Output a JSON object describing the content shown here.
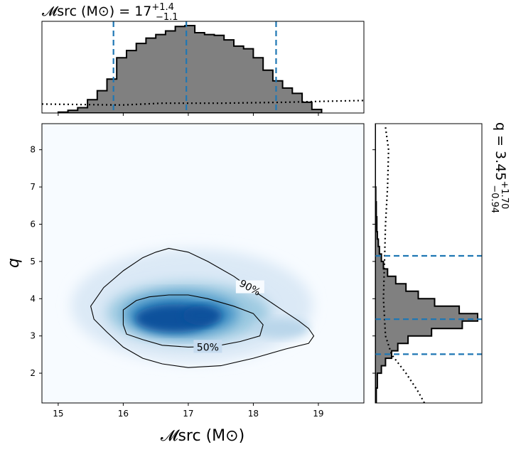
{
  "chart_data": [
    {
      "panel": "main",
      "type": "heatmap",
      "description_type": "2d-posterior-density-with-credible-contours",
      "xlabel": "𝓜src (M⊙)",
      "ylabel": "q",
      "xlim": [
        14.75,
        19.7
      ],
      "ylim": [
        1.2,
        8.7
      ],
      "x_ticks": [
        15,
        16,
        17,
        18,
        19
      ],
      "y_ticks": [
        2,
        3,
        4,
        5,
        6,
        7,
        8
      ],
      "colormap": "Blues",
      "density_peak": {
        "x": 16.9,
        "y": 3.4
      },
      "contours": [
        {
          "label": "90%",
          "label_position": {
            "x": 17.95,
            "y": 4.3
          },
          "points": [
            [
              15.5,
              3.8
            ],
            [
              15.7,
              4.3
            ],
            [
              16.0,
              4.75
            ],
            [
              16.3,
              5.1
            ],
            [
              16.5,
              5.25
            ],
            [
              16.7,
              5.35
            ],
            [
              17.0,
              5.25
            ],
            [
              17.3,
              5.0
            ],
            [
              17.7,
              4.6
            ],
            [
              18.1,
              4.1
            ],
            [
              18.4,
              3.75
            ],
            [
              18.7,
              3.4
            ],
            [
              18.85,
              3.2
            ],
            [
              18.93,
              3.0
            ],
            [
              18.85,
              2.8
            ],
            [
              18.5,
              2.65
            ],
            [
              18.0,
              2.4
            ],
            [
              17.5,
              2.2
            ],
            [
              17.0,
              2.15
            ],
            [
              16.6,
              2.25
            ],
            [
              16.3,
              2.4
            ],
            [
              16.0,
              2.7
            ],
            [
              15.75,
              3.1
            ],
            [
              15.55,
              3.45
            ]
          ]
        },
        {
          "label": "50%",
          "label_position": {
            "x": 17.3,
            "y": 2.7
          },
          "points": [
            [
              16.0,
              3.3
            ],
            [
              16.0,
              3.7
            ],
            [
              16.2,
              3.95
            ],
            [
              16.4,
              4.05
            ],
            [
              16.7,
              4.1
            ],
            [
              17.0,
              4.1
            ],
            [
              17.3,
              4.0
            ],
            [
              17.7,
              3.8
            ],
            [
              18.0,
              3.6
            ],
            [
              18.15,
              3.3
            ],
            [
              18.1,
              3.0
            ],
            [
              17.8,
              2.85
            ],
            [
              17.4,
              2.72
            ],
            [
              17.0,
              2.7
            ],
            [
              16.6,
              2.75
            ],
            [
              16.3,
              2.9
            ],
            [
              16.05,
              3.05
            ]
          ]
        }
      ]
    },
    {
      "panel": "top-marginal",
      "type": "histogram",
      "title": "𝓜src (M⊙) = 17",
      "title_sup": "+1.4",
      "title_sub": "−1.1",
      "xlim": [
        14.75,
        19.7
      ],
      "bin_edges": [
        15.0,
        15.15,
        15.3,
        15.45,
        15.6,
        15.75,
        15.9,
        16.05,
        16.2,
        16.35,
        16.5,
        16.65,
        16.8,
        16.95,
        17.1,
        17.25,
        17.4,
        17.55,
        17.7,
        17.85,
        18.0,
        18.15,
        18.3,
        18.45,
        18.6,
        18.75,
        18.9,
        19.05
      ],
      "counts": [
        0.01,
        0.03,
        0.06,
        0.15,
        0.25,
        0.38,
        0.62,
        0.7,
        0.78,
        0.84,
        0.88,
        0.92,
        0.97,
        0.98,
        0.9,
        0.88,
        0.87,
        0.82,
        0.75,
        0.72,
        0.62,
        0.48,
        0.36,
        0.28,
        0.22,
        0.12,
        0.04
      ],
      "credible_lines": [
        15.85,
        16.97,
        18.35
      ],
      "prior_dotted": {
        "x": [
          14.75,
          15.9,
          16.0,
          16.6,
          17.5,
          18.5,
          19.0,
          19.7
        ],
        "y": [
          0.1,
          0.09,
          0.09,
          0.11,
          0.11,
          0.12,
          0.13,
          0.14
        ]
      }
    },
    {
      "panel": "right-marginal",
      "type": "histogram",
      "orientation": "horizontal",
      "title": "q = 3.45",
      "title_sup": "+1.70",
      "title_sub": "−0.94",
      "ylim": [
        1.2,
        8.7
      ],
      "bin_edges": [
        1.2,
        1.6,
        2.0,
        2.2,
        2.4,
        2.6,
        2.8,
        3.0,
        3.2,
        3.4,
        3.6,
        3.8,
        4.0,
        4.2,
        4.4,
        4.6,
        4.8,
        5.0,
        5.2,
        5.4,
        5.6,
        5.8,
        6.2,
        6.6,
        7.0,
        8.7
      ],
      "counts": [
        0.01,
        0.02,
        0.06,
        0.1,
        0.16,
        0.22,
        0.32,
        0.55,
        0.85,
        1.0,
        0.82,
        0.58,
        0.42,
        0.3,
        0.2,
        0.12,
        0.08,
        0.06,
        0.04,
        0.03,
        0.02,
        0.015,
        0.01,
        0.005,
        0.0
      ],
      "credible_lines": [
        2.51,
        3.45,
        5.15
      ],
      "prior_dotted": {
        "y": [
          1.2,
          1.5,
          2.0,
          2.5,
          3.0,
          4.0,
          5.0,
          6.0,
          7.0,
          8.0,
          8.6
        ],
        "x": [
          0.48,
          0.42,
          0.3,
          0.16,
          0.1,
          0.08,
          0.09,
          0.1,
          0.12,
          0.13,
          0.1
        ]
      }
    }
  ]
}
